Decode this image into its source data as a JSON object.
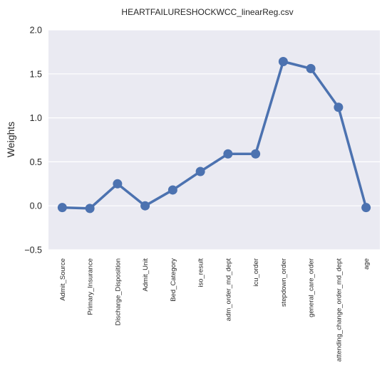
{
  "chart_data": {
    "type": "line",
    "title": "HEARTFAILURESHOCKWCC_linearReg.csv",
    "xlabel": "",
    "ylabel": "Weights",
    "categories": [
      "Admit_Source",
      "Primary_Insurance",
      "Discharge_Disposition",
      "Admit_Unit",
      "Bed_Category",
      "iso_result",
      "adm_order_md_dept",
      "icu_order",
      "stepdown_order",
      "general_care_order",
      "attending_change_order_md_dept",
      "age"
    ],
    "series": [
      {
        "values": [
          -0.02,
          -0.03,
          0.25,
          0.0,
          0.18,
          0.39,
          0.59,
          0.59,
          1.64,
          1.56,
          1.12,
          -0.02
        ]
      }
    ],
    "ylim": [
      -0.5,
      2.0
    ],
    "yticks": [
      "2.0",
      "1.5",
      "1.0",
      "0.5",
      "0.0",
      "−0.5"
    ],
    "ytick_values": [
      2.0,
      1.5,
      1.0,
      0.5,
      0.0,
      -0.5
    ],
    "grid": true,
    "colors": {
      "line": "#4c72b0",
      "background": "#eaeaf2",
      "grid": "#ffffff"
    }
  }
}
